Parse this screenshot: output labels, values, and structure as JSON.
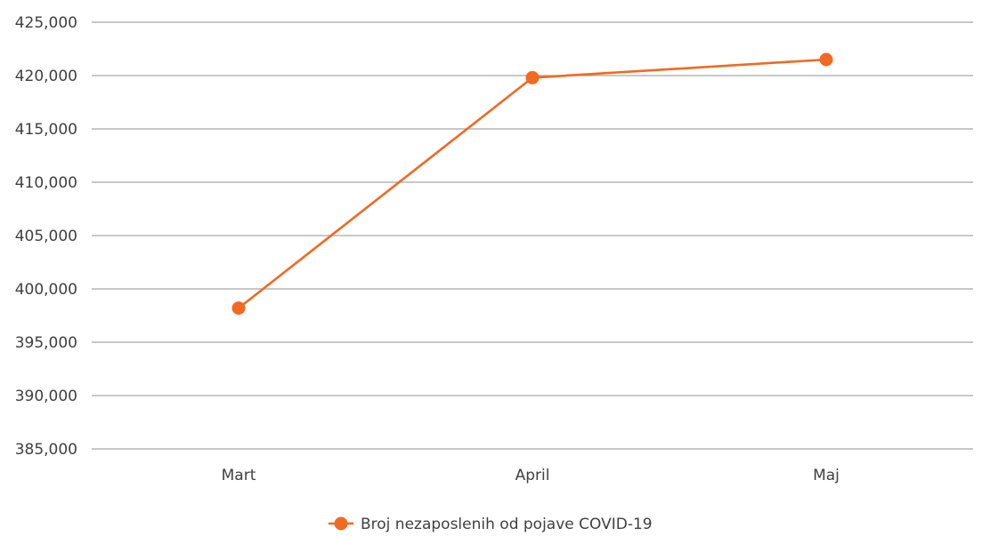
{
  "chart_data": {
    "type": "line",
    "categories": [
      "Mart",
      "April",
      "Maj"
    ],
    "series": [
      {
        "name": "Broj nezaposlenih od pojave COVID-19",
        "values": [
          398200,
          419800,
          421500
        ],
        "color": "#f06a21"
      }
    ],
    "yticks": [
      "385,000",
      "390,000",
      "395,000",
      "400,000",
      "405,000",
      "410,000",
      "415,000",
      "420,000",
      "425,000"
    ],
    "ylim": [
      385000,
      425000
    ],
    "ytick_step": 5000,
    "grid": true,
    "legend_position": "bottom-center"
  }
}
